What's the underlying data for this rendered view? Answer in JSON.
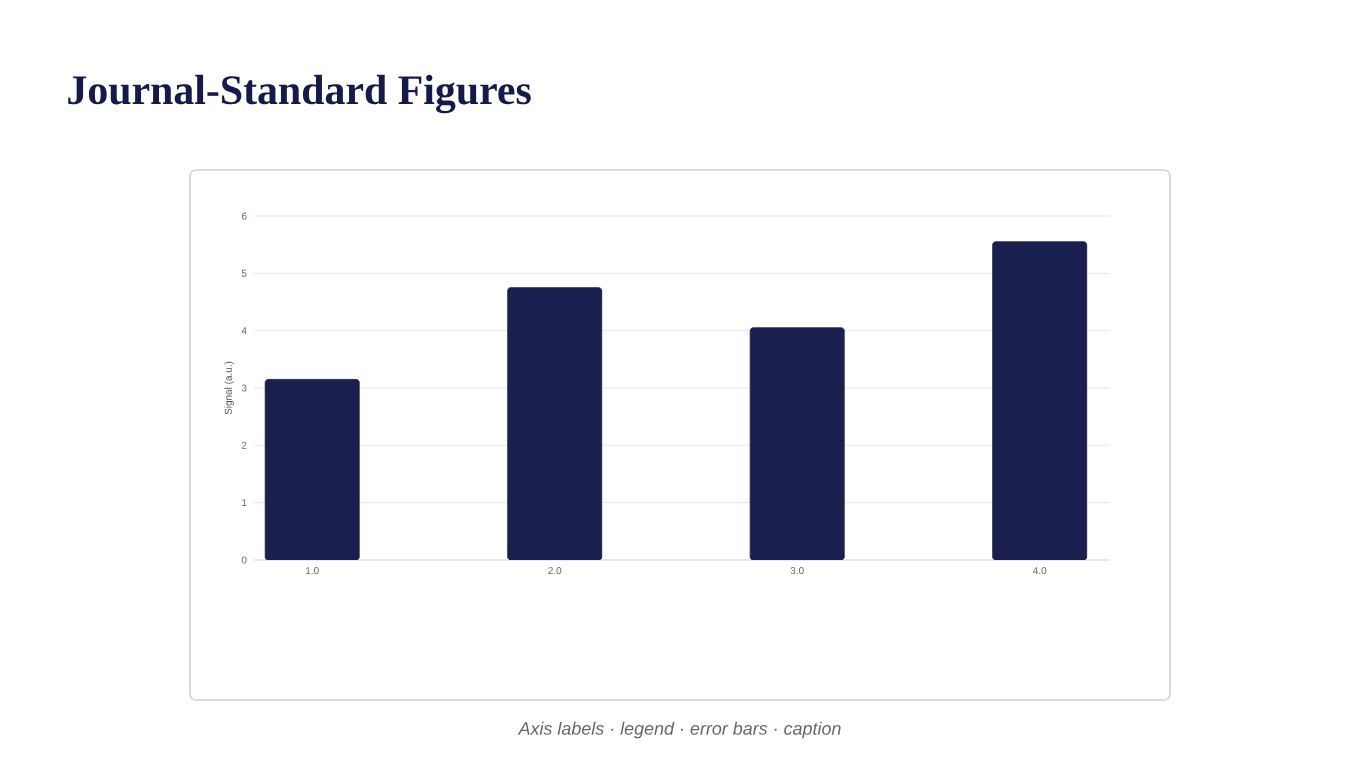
{
  "chart_data": {
    "type": "bar",
    "title": "Journal-Standard Figures",
    "ylabel": "Signal (a.u.)",
    "categories": [
      "1.0",
      "2.0",
      "3.0",
      "4.0"
    ],
    "values": [
      3.15,
      4.75,
      4.05,
      5.55
    ],
    "color": "#1b1f50",
    "ylim": [
      0,
      6
    ],
    "yticks": [
      0,
      1,
      2,
      3,
      4,
      5,
      6
    ],
    "grid": "y",
    "annotations": [
      "Axis labels · legend · error bars · caption"
    ]
  }
}
